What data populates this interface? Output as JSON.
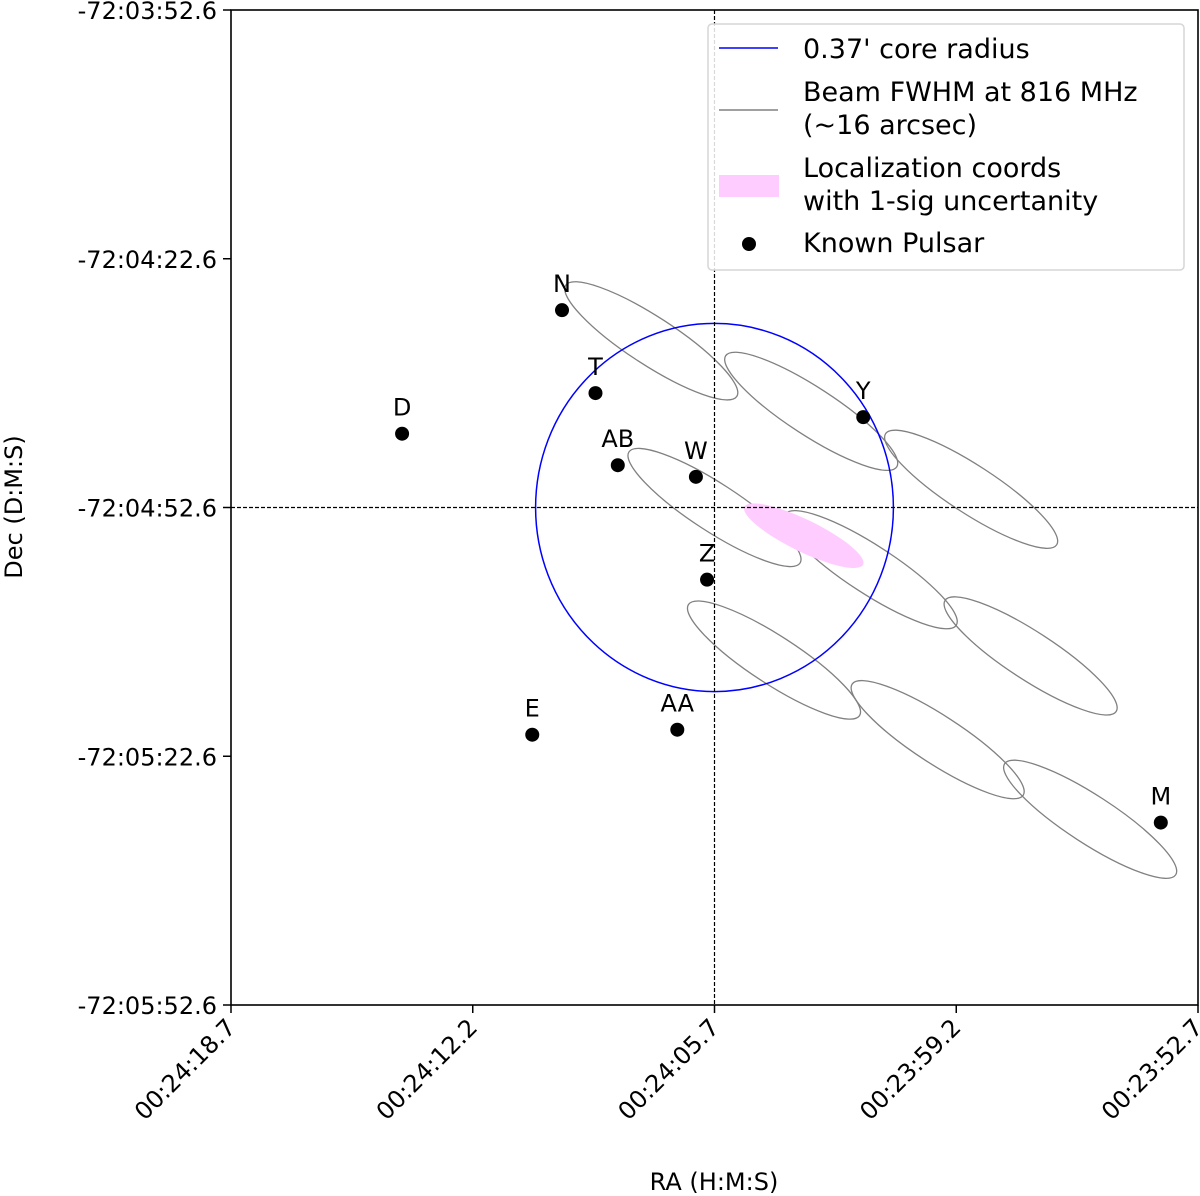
{
  "chart_data": {
    "type": "scatter",
    "xlabel": "RA (H:M:S)",
    "ylabel": "Dec (D:M:S)",
    "xlim": [
      "00:24:18.7",
      "00:23:52.7"
    ],
    "ylim": [
      "-72:05:52.6",
      "-72:03:52.6"
    ],
    "x_ticks": [
      "00:24:18.7",
      "00:24:12.2",
      "00:24:05.7",
      "00:23:59.2",
      "00:23:52.7"
    ],
    "y_ticks": [
      "-72:03:52.6",
      "-72:04:22.6",
      "-72:04:52.6",
      "-72:05:22.6",
      "-72:05:52.6"
    ],
    "grid": false,
    "crosshair": {
      "ra": "00:24:05.7",
      "dec": "-72:04:52.6"
    },
    "core": {
      "ra": "00:24:05.7",
      "dec": "-72:04:52.6",
      "radius_arcmin": 0.37,
      "color": "#0000ff"
    },
    "beam_color": "#808080",
    "beams": [
      {
        "ra": "00:24:07.4",
        "dec": "-72:04:32.5"
      },
      {
        "ra": "00:24:03.1",
        "dec": "-72:04:41.0"
      },
      {
        "ra": "00:23:58.8",
        "dec": "-72:04:50.4"
      },
      {
        "ra": "00:24:05.7",
        "dec": "-72:04:52.6"
      },
      {
        "ra": "00:24:01.5",
        "dec": "-72:05:00.1"
      },
      {
        "ra": "00:23:57.2",
        "dec": "-72:05:10.5"
      },
      {
        "ra": "00:24:04.1",
        "dec": "-72:05:11.0"
      },
      {
        "ra": "00:23:59.7",
        "dec": "-72:05:20.6"
      },
      {
        "ra": "00:23:55.6",
        "dec": "-72:05:30.2"
      }
    ],
    "localization": {
      "ra": "00:24:03.3",
      "dec": "-72:04:56.0",
      "color": "#ffccff"
    },
    "pulsars": [
      {
        "name": "N",
        "ra": "00:24:09.8",
        "dec": "-72:04:28.8"
      },
      {
        "name": "T",
        "ra": "00:24:08.9",
        "dec": "-72:04:38.8"
      },
      {
        "name": "D",
        "ra": "00:24:14.1",
        "dec": "-72:04:43.7"
      },
      {
        "name": "AB",
        "ra": "00:24:08.3",
        "dec": "-72:04:47.5"
      },
      {
        "name": "W",
        "ra": "00:24:06.2",
        "dec": "-72:04:48.9"
      },
      {
        "name": "Y",
        "ra": "00:24:01.7",
        "dec": "-72:04:41.7"
      },
      {
        "name": "Z",
        "ra": "00:24:05.9",
        "dec": "-72:05:01.3"
      },
      {
        "name": "E",
        "ra": "00:24:10.6",
        "dec": "-72:05:20.0"
      },
      {
        "name": "AA",
        "ra": "00:24:06.7",
        "dec": "-72:05:19.4"
      },
      {
        "name": "M",
        "ra": "00:23:53.7",
        "dec": "-72:05:30.6"
      }
    ],
    "legend": {
      "placement": "top-right",
      "core": "0.37' core radius",
      "beam_line1": "Beam FWHM at 816 MHz",
      "beam_line2": "(~16 arcsec)",
      "loc_line1": "Localization coords",
      "loc_line2": "with 1-sig uncertanity",
      "pulsar": "Known Pulsar"
    }
  }
}
